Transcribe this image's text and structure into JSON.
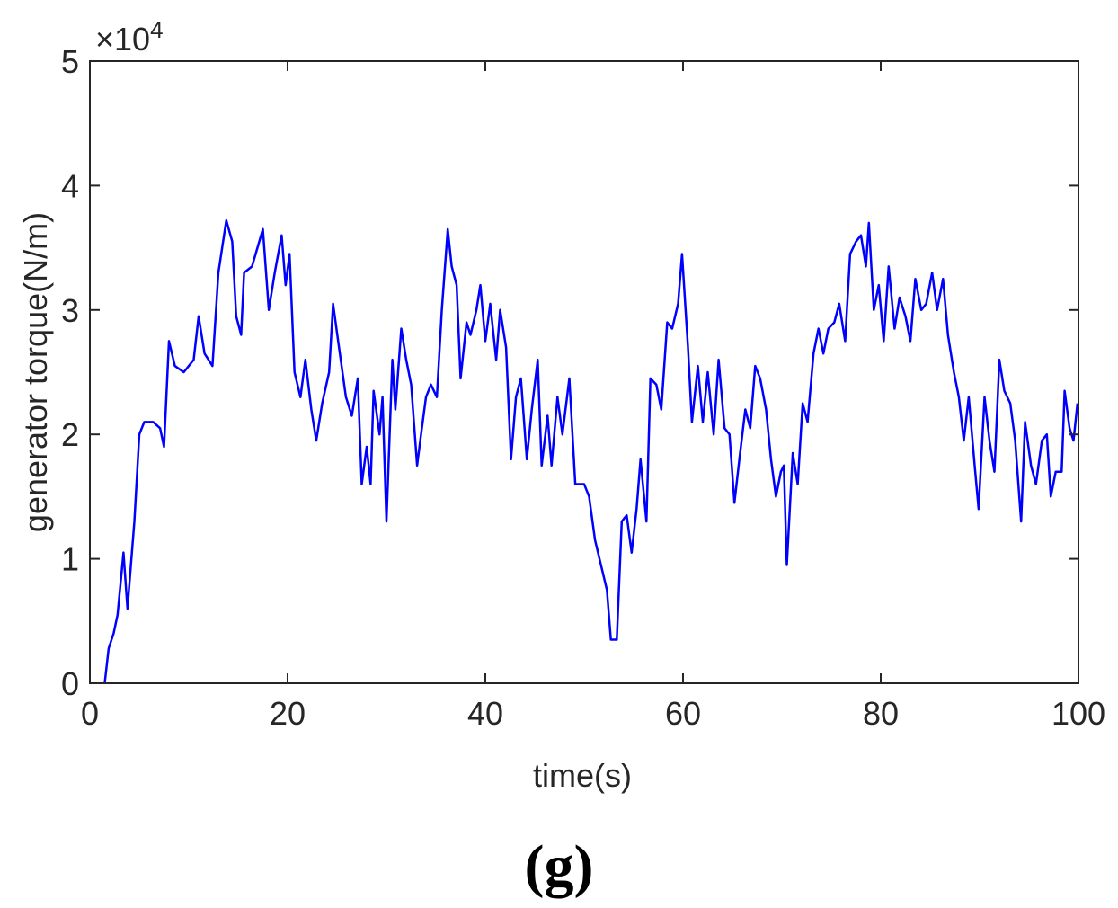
{
  "chart_data": {
    "type": "line",
    "y_scale_label": {
      "base": "×10",
      "exponent": "4"
    },
    "xlabel": "time(s)",
    "ylabel": "generator torque(N/m)",
    "caption": "(g)",
    "xlim": [
      0,
      100
    ],
    "ylim": [
      0,
      5
    ],
    "xticks": [
      0,
      20,
      40,
      60,
      80,
      100
    ],
    "yticks": [
      0,
      1,
      2,
      3,
      4,
      5
    ],
    "grid": false,
    "box": true,
    "series": [
      {
        "color": "#0000ff",
        "x": [
          1.5,
          1.9,
          2.4,
          2.8,
          3.4,
          3.8,
          4.5,
          5,
          5.5,
          6.4,
          7.1,
          7.5,
          8,
          8.6,
          9.5,
          10.5,
          11,
          11.6,
          12.4,
          13,
          13.8,
          14.4,
          14.8,
          15.3,
          15.6,
          16.4,
          17.5,
          18.1,
          18.7,
          19.4,
          19.8,
          20.2,
          20.7,
          21.3,
          21.8,
          22.4,
          22.9,
          23.5,
          24.2,
          24.6,
          25.2,
          25.9,
          26.5,
          27.1,
          27.5,
          28,
          28.4,
          28.7,
          29.3,
          29.6,
          30,
          30.6,
          30.9,
          31.5,
          32,
          32.5,
          33.1,
          33.5,
          34,
          34.5,
          35.1,
          35.6,
          36.2,
          36.6,
          37.1,
          37.5,
          38.1,
          38.5,
          39.1,
          39.5,
          40,
          40.5,
          41.1,
          41.5,
          42.1,
          42.6,
          43.1,
          43.6,
          44.2,
          44.7,
          45.3,
          45.7,
          46.3,
          46.7,
          47.3,
          47.8,
          48.5,
          49.1,
          50,
          50.5,
          51.1,
          51.7,
          52.3,
          52.7,
          53.3,
          53.8,
          54.3,
          54.8,
          55.3,
          55.7,
          56.3,
          56.7,
          57.3,
          57.8,
          58.4,
          58.9,
          59.5,
          59.9,
          60.5,
          60.9,
          61.5,
          62,
          62.5,
          63.1,
          63.6,
          64.2,
          64.7,
          65.2,
          65.7,
          66.3,
          66.8,
          67.3,
          67.8,
          68.4,
          68.9,
          69.4,
          69.9,
          70.2,
          70.5,
          71.1,
          71.6,
          72.1,
          72.6,
          73.2,
          73.7,
          74.2,
          74.7,
          75.3,
          75.8,
          76.4,
          76.9,
          77.5,
          78,
          78.5,
          78.8,
          79.3,
          79.8,
          80.3,
          80.8,
          81.4,
          81.9,
          82.5,
          83,
          83.5,
          84.1,
          84.6,
          85.2,
          85.7,
          86.3,
          86.8,
          87.4,
          87.9,
          88.4,
          88.9,
          89.5,
          89.9,
          90.5,
          91,
          91.5,
          92,
          92.5,
          93.1,
          93.6,
          94.2,
          94.6,
          95.2,
          95.7,
          96.3,
          96.8,
          97.2,
          97.7,
          98.3,
          98.6,
          99.1,
          99.5,
          99.9
        ],
        "values": [
          0,
          0.28,
          0.4,
          0.55,
          1.05,
          0.6,
          1.3,
          2.0,
          2.1,
          2.1,
          2.05,
          1.9,
          2.75,
          2.55,
          2.5,
          2.6,
          2.95,
          2.65,
          2.55,
          3.3,
          3.72,
          3.55,
          2.95,
          2.8,
          3.3,
          3.35,
          3.65,
          3.0,
          3.3,
          3.6,
          3.2,
          3.45,
          2.5,
          2.3,
          2.6,
          2.2,
          1.95,
          2.25,
          2.5,
          3.05,
          2.7,
          2.3,
          2.15,
          2.45,
          1.6,
          1.9,
          1.6,
          2.35,
          2.0,
          2.3,
          1.3,
          2.6,
          2.2,
          2.85,
          2.6,
          2.4,
          1.75,
          2.0,
          2.3,
          2.4,
          2.3,
          3.0,
          3.65,
          3.35,
          3.2,
          2.45,
          2.9,
          2.8,
          3.0,
          3.2,
          2.75,
          3.05,
          2.6,
          3.0,
          2.7,
          1.8,
          2.3,
          2.45,
          1.8,
          2.2,
          2.6,
          1.75,
          2.15,
          1.75,
          2.3,
          2.0,
          2.45,
          1.6,
          1.6,
          1.5,
          1.15,
          0.95,
          0.75,
          0.35,
          0.35,
          1.3,
          1.35,
          1.05,
          1.4,
          1.8,
          1.3,
          2.45,
          2.4,
          2.2,
          2.9,
          2.85,
          3.05,
          3.45,
          2.7,
          2.1,
          2.55,
          2.1,
          2.5,
          2.0,
          2.6,
          2.05,
          2.0,
          1.45,
          1.8,
          2.2,
          2.05,
          2.55,
          2.45,
          2.2,
          1.8,
          1.5,
          1.7,
          1.75,
          0.95,
          1.85,
          1.6,
          2.25,
          2.1,
          2.65,
          2.85,
          2.65,
          2.85,
          2.9,
          3.05,
          2.75,
          3.45,
          3.55,
          3.6,
          3.35,
          3.7,
          3.0,
          3.2,
          2.75,
          3.35,
          2.85,
          3.1,
          2.95,
          2.75,
          3.25,
          3.0,
          3.05,
          3.3,
          3.0,
          3.25,
          2.8,
          2.5,
          2.3,
          1.95,
          2.3,
          1.75,
          1.4,
          2.3,
          1.95,
          1.7,
          2.6,
          2.35,
          2.25,
          1.95,
          1.3,
          2.1,
          1.75,
          1.6,
          1.95,
          2.0,
          1.5,
          1.7,
          1.7,
          2.35,
          2.05,
          1.95,
          2.25
        ]
      }
    ]
  }
}
